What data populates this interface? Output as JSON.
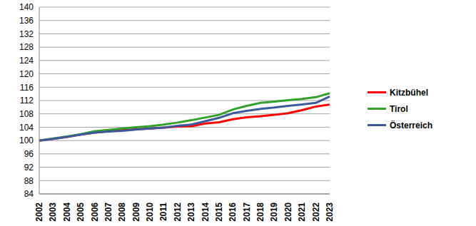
{
  "chart_data": {
    "type": "line",
    "categories": [
      "2002",
      "2003",
      "2004",
      "2005",
      "2006",
      "2007",
      "2008",
      "2009",
      "2010",
      "2011",
      "2012",
      "2013",
      "2014",
      "2015",
      "2016",
      "2017",
      "2018",
      "2019",
      "2020",
      "2021",
      "2022",
      "2023"
    ],
    "series": [
      {
        "name": "Kitzbühel",
        "color": "#ff0000",
        "values": [
          100,
          100.5,
          101.1,
          101.8,
          102.4,
          102.8,
          103.1,
          103.4,
          103.6,
          103.9,
          104.2,
          104.3,
          105.1,
          105.5,
          106.4,
          107.0,
          107.3,
          107.7,
          108.2,
          109.1,
          110.2,
          110.8
        ]
      },
      {
        "name": "Tirol",
        "color": "#33a02c",
        "values": [
          100,
          100.6,
          101.2,
          101.9,
          102.8,
          103.2,
          103.6,
          104.0,
          104.3,
          104.8,
          105.4,
          106.1,
          106.9,
          107.7,
          109.3,
          110.4,
          111.3,
          111.7,
          112.1,
          112.5,
          113.0,
          114.2
        ]
      },
      {
        "name": "Österreich",
        "color": "#3c5a9a",
        "values": [
          100,
          100.5,
          101.1,
          101.8,
          102.4,
          102.7,
          102.9,
          103.3,
          103.6,
          103.9,
          104.4,
          104.8,
          105.8,
          106.8,
          108.2,
          108.9,
          109.5,
          109.9,
          110.4,
          110.8,
          111.3,
          113.2
        ]
      }
    ],
    "ylim": [
      84,
      140
    ],
    "yticks": [
      84,
      88,
      92,
      96,
      100,
      104,
      108,
      112,
      116,
      120,
      124,
      128,
      132,
      136,
      140
    ],
    "grid": true,
    "legend": "right"
  }
}
